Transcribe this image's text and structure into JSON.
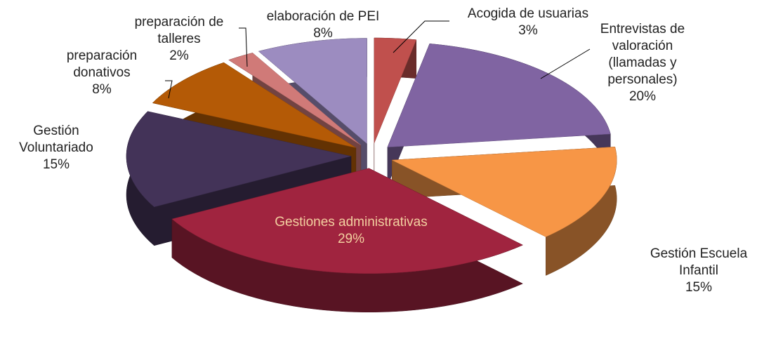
{
  "chart_data": {
    "type": "pie",
    "categories": [
      "Acogida de usuarias",
      "Entrevistas de valoración (llamadas y personales)",
      "Gestión Escuela Infantil",
      "Gestiones administrativas",
      "Gestión Voluntariado",
      "preparación donativos",
      "preparación de talleres",
      "elaboración de PEI"
    ],
    "values": [
      3,
      20,
      15,
      29,
      15,
      8,
      2,
      8
    ],
    "value_labels": [
      "3%",
      "20%",
      "15%",
      "29%",
      "15%",
      "8%",
      "2%",
      "8%"
    ],
    "colors": [
      "#c0504d",
      "#8064a2",
      "#f79646",
      "#a0243f",
      "#433358",
      "#b45a06",
      "#d07a78",
      "#9c8cc0"
    ]
  }
}
